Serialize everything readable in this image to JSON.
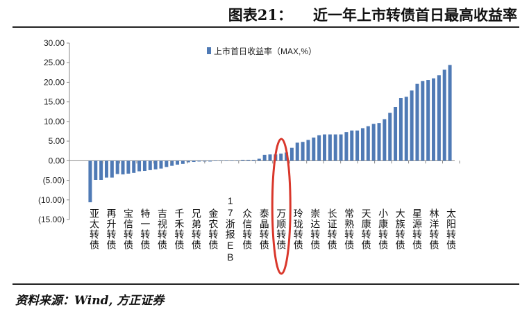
{
  "header": {
    "figure_no": "图表21：",
    "title": "近一年上市转债首日最高收益率"
  },
  "source": "资料来源：Wind, 方正证券",
  "chart_data": {
    "type": "bar",
    "title": "近一年上市转债首日最高收益率",
    "legend": "上市首日收益率（MAX,%）",
    "legend_position": "top-center",
    "ylim": [
      -15,
      30
    ],
    "yticks": [
      "30.00",
      "25.00",
      "20.00",
      "15.00",
      "10.00",
      "5.00",
      "0.00",
      "(5.00)",
      "(10.00)",
      "(15.00)"
    ],
    "ytick_values": [
      30,
      25,
      20,
      15,
      10,
      5,
      0,
      -5,
      -10,
      -15
    ],
    "grid": false,
    "color": "#4f7ab5",
    "highlight_color": "#d9372b",
    "highlight_label": "万顺转债",
    "category_labels": [
      "亚太转债",
      "再升转债",
      "宝信转债",
      "特一转债",
      "吉视转债",
      "千禾转债",
      "兄弟转债",
      "金农转债",
      "17浙报EB",
      "众信转债",
      "泰晶转债",
      "万顺转债",
      "玲珑转债",
      "崇达转债",
      "长证转债",
      "常熟转债",
      "天康转债",
      "小康转债",
      "大族转债",
      "星源转债",
      "林洋转债",
      "太阳转债"
    ],
    "values": [
      -10.6,
      -4.9,
      -4.9,
      -4.3,
      -4.3,
      -3.4,
      -3.5,
      -3.3,
      -3.1,
      -2.7,
      -2.6,
      -2.4,
      -2.2,
      -2.0,
      -1.6,
      -1.3,
      -1.0,
      -0.8,
      -0.4,
      -0.3,
      -0.2,
      -0.2,
      -0.2,
      -0.1,
      0,
      0,
      0,
      0,
      0.2,
      0.2,
      0.2,
      0.5,
      1.5,
      1.6,
      1.6,
      1.8,
      2.1,
      3.3,
      4.6,
      4.8,
      5.3,
      5.9,
      6.5,
      6.7,
      6.7,
      6.7,
      6.7,
      7.3,
      7.7,
      7.7,
      8.3,
      8.8,
      9.4,
      9.6,
      10.6,
      12.2,
      13.7,
      16.0,
      16.3,
      17.9,
      19.6,
      20.3,
      20.6,
      21.0,
      21.8,
      23.2,
      24.4
    ]
  }
}
